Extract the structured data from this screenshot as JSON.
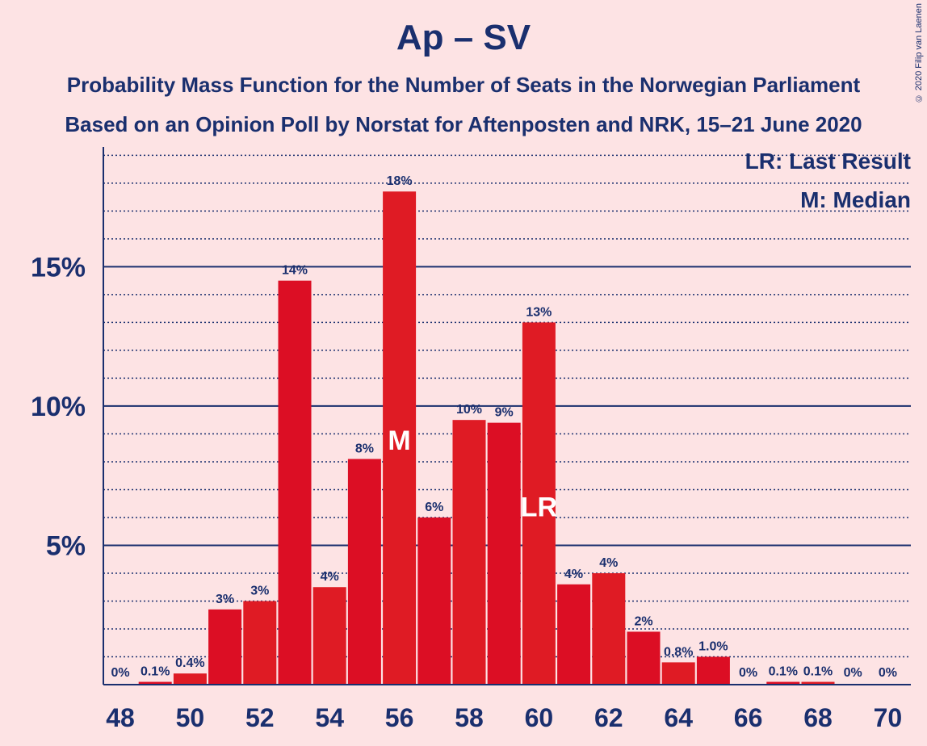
{
  "chart_data": {
    "type": "bar",
    "title": "Ap – SV",
    "subtitle": [
      "Probability Mass Function for the Number of Seats in the Norwegian Parliament",
      "Based on an Opinion Poll by Norstat for Aftenposten and NRK, 15–21 June 2020"
    ],
    "categories": [
      48,
      49,
      50,
      51,
      52,
      53,
      54,
      55,
      56,
      57,
      58,
      59,
      60,
      61,
      62,
      63,
      64,
      65,
      66,
      67,
      68,
      69,
      70
    ],
    "values": [
      0,
      0.1,
      0.4,
      2.7,
      3.0,
      14.5,
      3.5,
      8.1,
      17.7,
      6.0,
      9.5,
      9.4,
      13.0,
      3.6,
      4.0,
      1.9,
      0.8,
      1.0,
      0,
      0.1,
      0.1,
      0,
      0
    ],
    "value_labels": [
      "0%",
      "0.1%",
      "0.4%",
      "3%",
      "3%",
      "14%",
      "4%",
      "8%",
      "18%",
      "6%",
      "10%",
      "9%",
      "13%",
      "4%",
      "4%",
      "2%",
      "0.8%",
      "1.0%",
      "0%",
      "0.1%",
      "0.1%",
      "0%",
      "0%"
    ],
    "markers": [
      {
        "category": 56,
        "label": "M"
      },
      {
        "category": 60,
        "label": "LR"
      }
    ],
    "x_tick_labels": [
      "48",
      "50",
      "52",
      "54",
      "56",
      "58",
      "60",
      "62",
      "64",
      "66",
      "68",
      "70"
    ],
    "y_ticks": [
      5,
      10,
      15
    ],
    "y_tick_labels": [
      "5%",
      "10%",
      "15%"
    ],
    "ylim": [
      0,
      19.3
    ],
    "grid": true,
    "legend": [
      "LR: Last Result",
      "M: Median"
    ],
    "legend_position": "top-right",
    "colors": {
      "bar": "#df1b24",
      "bar_alt": "#dc0e24",
      "axis": "#1a2f6e",
      "background": "#fde3e4"
    }
  },
  "copyright": "© 2020 Filip van Laenen"
}
